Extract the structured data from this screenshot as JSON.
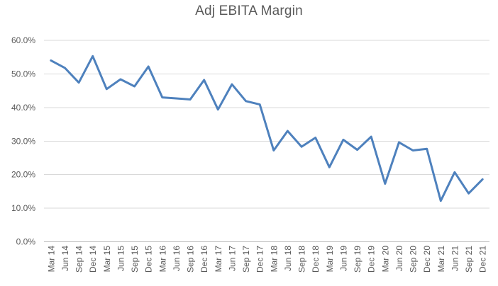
{
  "chart_data": {
    "type": "line",
    "title": "Adj EBITA Margin",
    "legend": "none",
    "grid": true,
    "categories": [
      "Mar 14",
      "Jun 14",
      "Sep 14",
      "Dec 14",
      "Mar 15",
      "Jun 15",
      "Sep 15",
      "Dec 15",
      "Mar 16",
      "Jun 16",
      "Sep 16",
      "Dec 16",
      "Mar 17",
      "Jun 17",
      "Sep 17",
      "Dec 17",
      "Mar 18",
      "Jun 18",
      "Sep 18",
      "Dec 18",
      "Mar 19",
      "Jun 19",
      "Sep 19",
      "Dec 19",
      "Mar 20",
      "Jun 20",
      "Sep 20",
      "Dec 20",
      "Mar 21",
      "Jun 21",
      "Sep 21",
      "Dec 21"
    ],
    "series": [
      {
        "name": "Adj EBITA Margin",
        "values": [
          54.0,
          51.8,
          47.4,
          55.3,
          45.5,
          48.4,
          46.3,
          52.2,
          43.0,
          42.7,
          42.4,
          48.2,
          39.4,
          46.9,
          41.9,
          40.9,
          27.2,
          33.0,
          28.3,
          31.0,
          22.2,
          30.4,
          27.4,
          31.3,
          17.3,
          29.6,
          27.2,
          27.7,
          12.2,
          20.7,
          14.4,
          18.6
        ]
      }
    ],
    "y_axis": {
      "min": 0,
      "max": 60,
      "ticks": [
        {
          "value": 0,
          "label": "0.0%"
        },
        {
          "value": 10,
          "label": "10.0%"
        },
        {
          "value": 20,
          "label": "20.0%"
        },
        {
          "value": 30,
          "label": "30.0%"
        },
        {
          "value": 40,
          "label": "40.0%"
        },
        {
          "value": 50,
          "label": "50.0%"
        },
        {
          "value": 60,
          "label": "60.0%"
        }
      ]
    },
    "colors": {
      "series": "#4E81BD",
      "gridline": "#D9D9D9",
      "axis_line": "#BFBFBF",
      "text": "#595959",
      "background": "#FFFFFF"
    }
  }
}
